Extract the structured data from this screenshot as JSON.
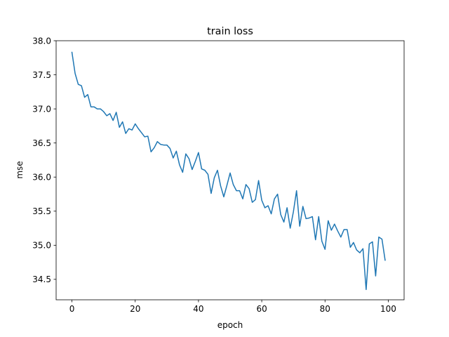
{
  "chart_data": {
    "type": "line",
    "title": "train loss",
    "xlabel": "epoch",
    "ylabel": "mse",
    "xlim": [
      -5,
      105
    ],
    "ylim": [
      34.2,
      38.0
    ],
    "xticks": [
      0,
      20,
      40,
      60,
      80,
      100
    ],
    "xtick_labels": [
      "0",
      "20",
      "40",
      "60",
      "80",
      "100"
    ],
    "yticks": [
      34.5,
      35.0,
      35.5,
      36.0,
      36.5,
      37.0,
      37.5,
      38.0
    ],
    "ytick_labels": [
      "34.5",
      "35.0",
      "35.5",
      "36.0",
      "36.5",
      "37.0",
      "37.5",
      "38.0"
    ],
    "grid": false,
    "series": [
      {
        "color": "#1f77b4",
        "x": [
          0,
          1,
          2,
          3,
          4,
          5,
          6,
          7,
          8,
          9,
          10,
          11,
          12,
          13,
          14,
          15,
          16,
          17,
          18,
          19,
          20,
          21,
          22,
          23,
          24,
          25,
          26,
          27,
          28,
          29,
          30,
          31,
          32,
          33,
          34,
          35,
          36,
          37,
          38,
          39,
          40,
          41,
          42,
          43,
          44,
          45,
          46,
          47,
          48,
          49,
          50,
          51,
          52,
          53,
          54,
          55,
          56,
          57,
          58,
          59,
          60,
          61,
          62,
          63,
          64,
          65,
          66,
          67,
          68,
          69,
          70,
          71,
          72,
          73,
          74,
          75,
          76,
          77,
          78,
          79,
          80,
          81,
          82,
          83,
          84,
          85,
          86,
          87,
          88,
          89,
          90,
          91,
          92,
          93,
          94,
          95,
          96,
          97,
          98,
          99
        ],
        "y": [
          37.83,
          37.52,
          37.36,
          37.34,
          37.17,
          37.21,
          37.03,
          37.03,
          37.0,
          37.0,
          36.96,
          36.9,
          36.93,
          36.83,
          36.95,
          36.73,
          36.81,
          36.64,
          36.71,
          36.69,
          36.78,
          36.71,
          36.65,
          36.59,
          36.6,
          36.37,
          36.43,
          36.52,
          36.48,
          36.47,
          36.47,
          36.42,
          36.28,
          36.38,
          36.18,
          36.07,
          36.34,
          36.27,
          36.11,
          36.23,
          36.36,
          36.12,
          36.1,
          36.04,
          35.76,
          35.99,
          36.1,
          35.87,
          35.71,
          35.88,
          36.06,
          35.89,
          35.8,
          35.8,
          35.68,
          35.89,
          35.83,
          35.63,
          35.67,
          35.95,
          35.66,
          35.55,
          35.58,
          35.46,
          35.68,
          35.75,
          35.45,
          35.34,
          35.55,
          35.25,
          35.49,
          35.8,
          35.28,
          35.57,
          35.39,
          35.4,
          35.42,
          35.08,
          35.42,
          35.06,
          34.94,
          35.36,
          35.22,
          35.31,
          35.21,
          35.12,
          35.23,
          35.23,
          34.97,
          35.04,
          34.93,
          34.89,
          34.95,
          34.35,
          35.02,
          35.05,
          34.55,
          35.12,
          35.09,
          34.78
        ]
      }
    ]
  }
}
